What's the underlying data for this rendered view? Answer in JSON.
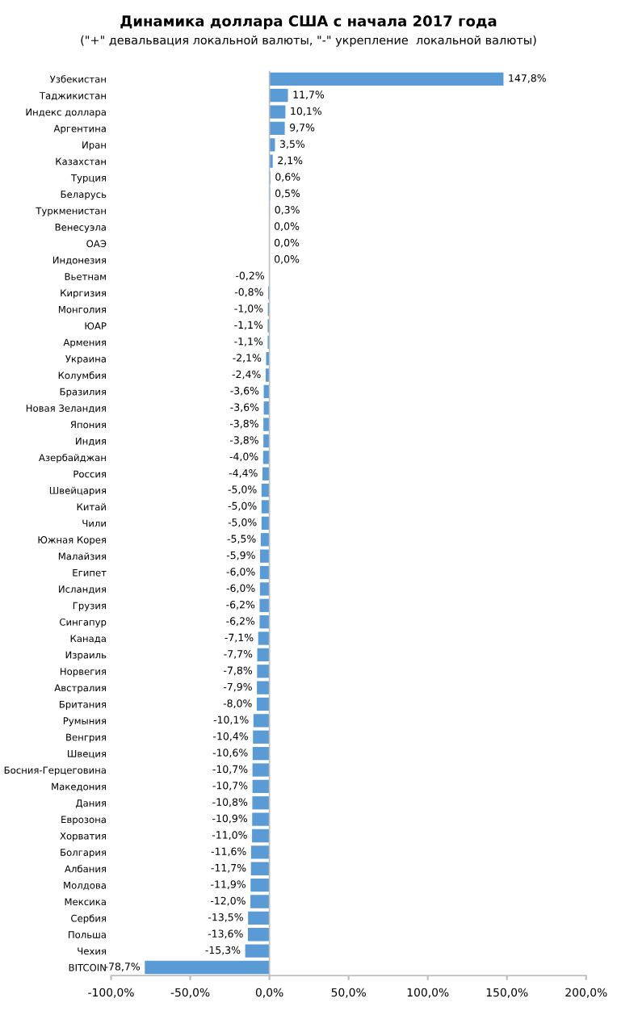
{
  "chart_data": {
    "type": "bar",
    "orientation": "horizontal",
    "title": "Динамика доллара США с начала 2017 года",
    "subtitle": "(\"+\" девальвация локальной валюты, \"-\" укрепление  локальной валюты)",
    "categories": [
      "Узбекистан",
      "Таджикистан",
      "Индекс доллара",
      "Аргентина",
      "Иран",
      "Казахстан",
      "Турция",
      "Беларусь",
      "Туркменистан",
      "Венесуэла",
      "ОАЭ",
      "Индонезия",
      "Вьетнам",
      "Киргизия",
      "Монголия",
      "ЮАР",
      "Армения",
      "Украина",
      "Колумбия",
      "Бразилия",
      "Новая Зеландия",
      "Япония",
      "Индия",
      "Азербайджан",
      "Россия",
      "Швейцария",
      "Китай",
      "Чили",
      "Южная Корея",
      "Малайзия",
      "Египет",
      "Исландия",
      "Грузия",
      "Сингапур",
      "Канада",
      "Израиль",
      "Норвегия",
      "Австралия",
      "Британия",
      "Румыния",
      "Венгрия",
      "Швеция",
      "Босния-Герцеговина",
      "Македония",
      "Дания",
      "Еврозона",
      "Хорватия",
      "Болгария",
      "Албания",
      "Молдова",
      "Мексика",
      "Сербия",
      "Польша",
      "Чехия",
      "BITCOIN"
    ],
    "values": [
      147.8,
      11.7,
      10.1,
      9.7,
      3.5,
      2.1,
      0.6,
      0.5,
      0.3,
      0.0,
      0.0,
      0.0,
      -0.2,
      -0.8,
      -1.0,
      -1.1,
      -1.1,
      -2.1,
      -2.4,
      -3.6,
      -3.6,
      -3.8,
      -3.8,
      -4.0,
      -4.4,
      -5.0,
      -5.0,
      -5.0,
      -5.5,
      -5.9,
      -6.0,
      -6.0,
      -6.2,
      -6.2,
      -7.1,
      -7.7,
      -7.8,
      -7.9,
      -8.0,
      -10.1,
      -10.4,
      -10.6,
      -10.7,
      -10.7,
      -10.8,
      -10.9,
      -11.0,
      -11.6,
      -11.7,
      -11.9,
      -12.0,
      -13.5,
      -13.6,
      -15.3,
      -78.7
    ],
    "value_labels": [
      "147,8%",
      "11,7%",
      "10,1%",
      "9,7%",
      "3,5%",
      "2,1%",
      "0,6%",
      "0,5%",
      "0,3%",
      "0,0%",
      "0,0%",
      "0,0%",
      "-0,2%",
      "-0,8%",
      "-1,0%",
      "-1,1%",
      "-1,1%",
      "-2,1%",
      "-2,4%",
      "-3,6%",
      "-3,6%",
      "-3,8%",
      "-3,8%",
      "-4,0%",
      "-4,4%",
      "-5,0%",
      "-5,0%",
      "-5,0%",
      "-5,5%",
      "-5,9%",
      "-6,0%",
      "-6,0%",
      "-6,2%",
      "-6,2%",
      "-7,1%",
      "-7,7%",
      "-7,8%",
      "-7,9%",
      "-8,0%",
      "-10,1%",
      "-10,4%",
      "-10,6%",
      "-10,7%",
      "-10,7%",
      "-10,8%",
      "-10,9%",
      "-11,0%",
      "-11,6%",
      "-11,7%",
      "-11,9%",
      "-12,0%",
      "-13,5%",
      "-13,6%",
      "-15,3%",
      "-78,7%"
    ],
    "color": "#5b9bd5",
    "xlim": [
      -100,
      200
    ],
    "xticks": [
      {
        "value": -100,
        "label": "-100,0%"
      },
      {
        "value": -50,
        "label": "-50,0%"
      },
      {
        "value": 0,
        "label": "0,0%"
      },
      {
        "value": 50,
        "label": "50,0%"
      },
      {
        "value": 100,
        "label": "100,0%"
      },
      {
        "value": 150,
        "label": "150,0%"
      },
      {
        "value": 200,
        "label": "200,0%"
      }
    ],
    "legend": false
  }
}
